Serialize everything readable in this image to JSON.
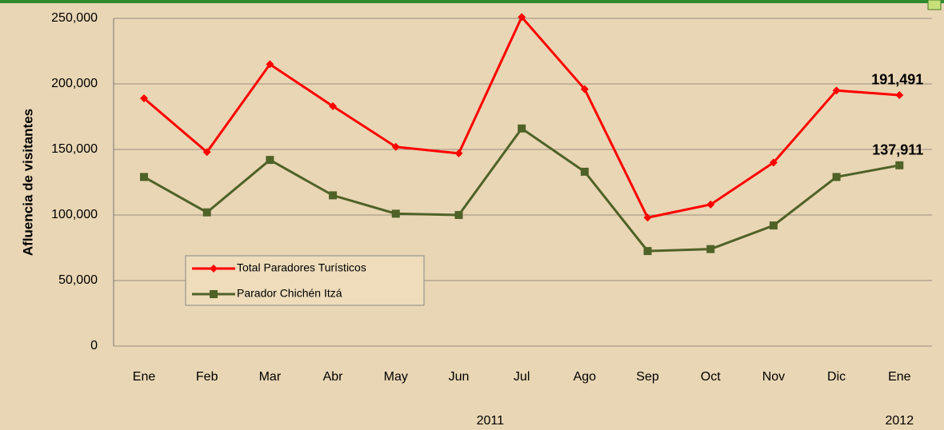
{
  "chart_data": {
    "type": "line",
    "y_label": "Afluencia de visitantes",
    "categories": [
      "Ene",
      "Feb",
      "Mar",
      "Abr",
      "May",
      "Jun",
      "Jul",
      "Ago",
      "Sep",
      "Oct",
      "Nov",
      "Dic",
      "Ene"
    ],
    "year_groups": [
      {
        "label": "2011",
        "span": [
          0,
          11
        ]
      },
      {
        "label": "2012",
        "span": [
          12,
          12
        ]
      }
    ],
    "series": [
      {
        "name": "Total Paradores Turísticos",
        "color": "#ff0000",
        "marker": "diamond",
        "values": [
          189000,
          148000,
          215000,
          183000,
          152000,
          147000,
          251000,
          196000,
          98000,
          108000,
          140000,
          195000,
          191491
        ],
        "value_labels": [
          null,
          null,
          null,
          null,
          null,
          null,
          null,
          null,
          null,
          null,
          null,
          null,
          "191,491"
        ]
      },
      {
        "name": "Parador Chichén Itzá",
        "color": "#4f6228",
        "marker": "square",
        "values": [
          129000,
          102000,
          142000,
          115000,
          101000,
          100000,
          166000,
          133000,
          72500,
          74000,
          92000,
          129000,
          137911
        ],
        "value_labels": [
          null,
          null,
          null,
          null,
          null,
          null,
          null,
          null,
          null,
          null,
          null,
          null,
          "137,911"
        ]
      }
    ],
    "ylim": [
      0,
      250000
    ],
    "yticks": [
      0,
      {
        "value": 50000,
        "label": "50,000"
      },
      {
        "value": 100000,
        "label": "100,000"
      },
      {
        "value": 150000,
        "label": "150,000"
      },
      {
        "value": 200000,
        "label": "200,000"
      },
      {
        "value": 250000,
        "label": "250,000"
      }
    ],
    "grid": true,
    "legend": "lower left"
  }
}
